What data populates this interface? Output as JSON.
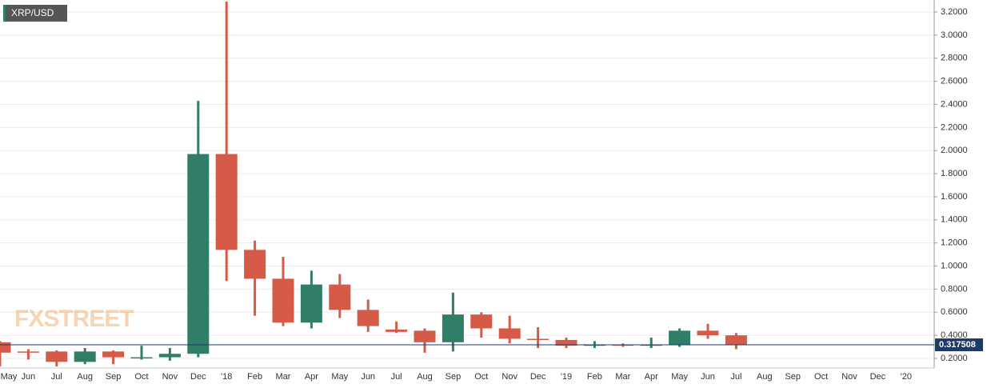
{
  "chart_data": {
    "type": "candlestick",
    "title": "XRP/USD",
    "watermark": "FXSTREET",
    "categories": [
      "May",
      "Jun",
      "Jul",
      "Aug",
      "Sep",
      "Oct",
      "Nov",
      "Dec",
      "'18",
      "Feb",
      "Mar",
      "Apr",
      "May",
      "Jun",
      "Jul",
      "Aug",
      "Sep",
      "Oct",
      "Nov",
      "Dec",
      "'19",
      "Feb",
      "Mar",
      "Apr",
      "May",
      "Jun",
      "Jul",
      "Aug",
      "Sep",
      "Oct",
      "Nov",
      "Dec",
      "'20"
    ],
    "open": [
      0.34,
      0.26,
      0.26,
      0.17,
      0.26,
      0.2,
      0.21,
      0.24,
      1.97,
      1.14,
      0.89,
      0.51,
      0.84,
      0.62,
      0.45,
      0.44,
      0.34,
      0.58,
      0.46,
      0.37,
      0.36,
      0.31,
      0.32,
      0.31,
      0.32,
      0.44,
      0.4,
      null,
      null,
      null,
      null,
      null,
      null
    ],
    "high": [
      0.35,
      0.28,
      0.27,
      0.29,
      0.27,
      0.31,
      0.29,
      2.43,
      3.29,
      1.22,
      1.08,
      0.96,
      0.93,
      0.71,
      0.52,
      0.46,
      0.77,
      0.6,
      0.57,
      0.47,
      0.38,
      0.35,
      0.33,
      0.38,
      0.46,
      0.5,
      0.42,
      null,
      null,
      null,
      null,
      null,
      null
    ],
    "low": [
      0.13,
      0.19,
      0.13,
      0.15,
      0.15,
      0.19,
      0.18,
      0.21,
      0.87,
      0.57,
      0.48,
      0.46,
      0.55,
      0.43,
      0.42,
      0.25,
      0.26,
      0.38,
      0.33,
      0.29,
      0.29,
      0.29,
      0.3,
      0.29,
      0.3,
      0.37,
      0.28,
      null,
      null,
      null,
      null,
      null,
      null
    ],
    "close": [
      0.25,
      0.25,
      0.17,
      0.26,
      0.21,
      0.21,
      0.24,
      1.97,
      1.14,
      0.89,
      0.51,
      0.84,
      0.62,
      0.48,
      0.43,
      0.34,
      0.58,
      0.46,
      0.37,
      0.36,
      0.31,
      0.32,
      0.31,
      0.32,
      0.44,
      0.4,
      0.32,
      null,
      null,
      null,
      null,
      null,
      null
    ],
    "up_color": "#307d68",
    "down_color": "#d65a48",
    "last_price": 0.317508,
    "ylim": [
      0.117,
      3.304
    ],
    "yticks": [
      {
        "value": 0.2,
        "label": "0.2000"
      },
      {
        "value": 0.4,
        "label": "0.4000"
      },
      {
        "value": 0.6,
        "label": "0.6000"
      },
      {
        "value": 0.8,
        "label": "0.8000"
      },
      {
        "value": 1.0,
        "label": "1.0000"
      },
      {
        "value": 1.2,
        "label": "1.2000"
      },
      {
        "value": 1.4,
        "label": "1.4000"
      },
      {
        "value": 1.6,
        "label": "1.6000"
      },
      {
        "value": 1.8,
        "label": "1.8000"
      },
      {
        "value": 2.0,
        "label": "2.0000"
      },
      {
        "value": 2.2,
        "label": "2.2000"
      },
      {
        "value": 2.4,
        "label": "2.4000"
      },
      {
        "value": 2.6,
        "label": "2.6000"
      },
      {
        "value": 2.8,
        "label": "2.8000"
      },
      {
        "value": 3.0,
        "label": "3.0000"
      },
      {
        "value": 3.2,
        "label": "3.2000"
      }
    ],
    "grid": true
  }
}
